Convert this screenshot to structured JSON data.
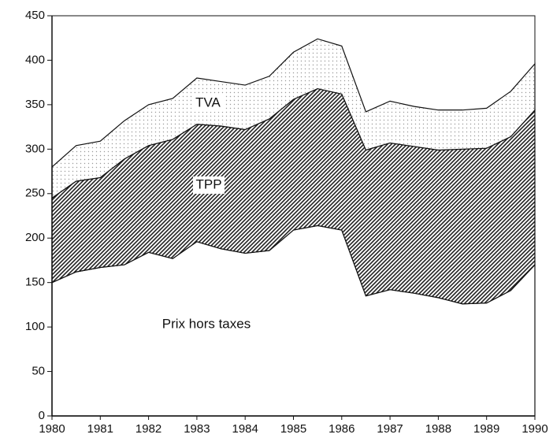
{
  "chart_data": {
    "type": "area",
    "x": [
      1980,
      1980.5,
      1981,
      1981.5,
      1982,
      1982.5,
      1983,
      1983.5,
      1984,
      1984.5,
      1985,
      1985.5,
      1986,
      1986.5,
      1987,
      1987.5,
      1988,
      1988.5,
      1989,
      1989.5,
      1990
    ],
    "series": [
      {
        "name": "Prix hors taxes",
        "color": "#ffffff",
        "values": [
          150,
          162,
          167,
          170,
          184,
          177,
          196,
          188,
          183,
          186,
          209,
          214,
          209,
          135,
          142,
          138,
          133,
          126,
          127,
          141,
          170
        ]
      },
      {
        "name": "TPP",
        "color": "#222222",
        "values": [
          95,
          102,
          101,
          119,
          120,
          134,
          132,
          138,
          139,
          148,
          147,
          154,
          153,
          164,
          165,
          165,
          166,
          174,
          174,
          173,
          174
        ]
      },
      {
        "name": "TVA",
        "color": "#999999",
        "values": [
          35,
          40,
          41,
          43,
          46,
          46,
          52,
          50,
          50,
          48,
          53,
          56,
          54,
          43,
          47,
          45,
          45,
          44,
          45,
          51,
          52
        ]
      }
    ],
    "xlim": [
      1980,
      1990
    ],
    "xticks": [
      1980,
      1981,
      1982,
      1983,
      1984,
      1985,
      1986,
      1987,
      1988,
      1989,
      1990
    ],
    "ylim": [
      0,
      450
    ],
    "yticks": [
      0,
      50,
      100,
      150,
      200,
      250,
      300,
      350,
      400,
      450
    ],
    "stacked": true
  }
}
